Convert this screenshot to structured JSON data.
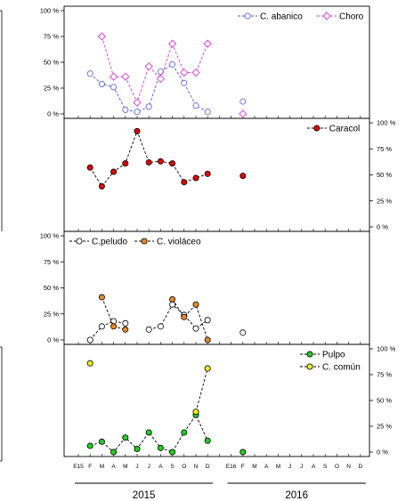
{
  "chart_data": {
    "type": "line",
    "x_categories": [
      "E15",
      "F",
      "M",
      "A",
      "M",
      "J",
      "J",
      "A",
      "S",
      "O",
      "N",
      "D",
      "",
      "E16",
      "F",
      "M",
      "A",
      "M",
      "J",
      "J",
      "A",
      "S",
      "O",
      "N",
      "D"
    ],
    "year_labels": [
      "2015",
      "2016"
    ],
    "grid": false,
    "panels": [
      {
        "ylim": [
          0,
          100
        ],
        "yticks": [
          "0 %",
          "25 %",
          "50 %",
          "75 %",
          "100 %"
        ],
        "axis_side": "left",
        "legend_position": "top-right",
        "series": [
          {
            "name": "C. abanico",
            "color": "#4a5ad8",
            "fill": "#ffffff",
            "marker": "circle",
            "values": [
              null,
              39,
              29,
              26,
              4,
              2,
              7,
              41,
              48,
              30,
              8,
              2,
              null,
              null,
              12,
              null,
              null,
              null,
              null,
              null,
              null,
              null,
              null,
              null,
              null
            ]
          },
          {
            "name": "Choro",
            "color": "#d63ad6",
            "fill": "#ffffff",
            "marker": "diamond",
            "values": [
              null,
              null,
              75,
              36,
              36,
              11,
              46,
              34,
              68,
              40,
              40,
              68,
              null,
              null,
              0,
              null,
              null,
              null,
              null,
              null,
              null,
              null,
              null,
              null,
              null
            ]
          }
        ]
      },
      {
        "ylim": [
          0,
          100
        ],
        "yticks": [
          "0 %",
          "25 %",
          "50 %",
          "75 %",
          "100 %"
        ],
        "axis_side": "right",
        "legend_position": "top-right",
        "series": [
          {
            "name": "Caracol",
            "color": "#000000",
            "fill": "#e00000",
            "marker": "circle",
            "values": [
              null,
              57,
              39,
              53,
              61,
              92,
              62,
              63,
              61,
              43,
              47,
              51,
              null,
              null,
              49,
              null,
              null,
              null,
              null,
              null,
              null,
              null,
              null,
              null,
              null
            ]
          }
        ]
      },
      {
        "ylim": [
          0,
          100
        ],
        "yticks": [
          "0 %",
          "25 %",
          "50 %",
          "75 %",
          "100 %"
        ],
        "axis_side": "left",
        "legend_position": "top-left",
        "series": [
          {
            "name": "C.peludo",
            "color": "#000000",
            "fill": "#ffffff",
            "marker": "circle",
            "values": [
              null,
              0,
              13,
              18,
              16,
              null,
              10,
              13,
              34,
              24,
              11,
              19,
              null,
              null,
              7,
              null,
              null,
              null,
              null,
              null,
              null,
              null,
              null,
              null,
              null
            ]
          },
          {
            "name": "C. violáceo",
            "color": "#000000",
            "fill": "#e88a2a",
            "marker": "circle",
            "values": [
              null,
              null,
              41,
              13,
              10,
              null,
              null,
              null,
              39,
              22,
              34,
              0,
              null,
              null,
              null,
              null,
              null,
              null,
              null,
              null,
              null,
              null,
              null,
              null,
              null
            ]
          }
        ]
      },
      {
        "ylim": [
          0,
          100
        ],
        "yticks": [
          "0 %",
          "25 %",
          "50 %",
          "75 %",
          "100 %"
        ],
        "axis_side": "right",
        "legend_position": "top-right",
        "series": [
          {
            "name": "Pulpo",
            "color": "#000000",
            "fill": "#22d022",
            "marker": "circle",
            "values": [
              null,
              6,
              10,
              0,
              14,
              3,
              19,
              4,
              0,
              19,
              36,
              11,
              null,
              null,
              0,
              null,
              null,
              null,
              null,
              null,
              null,
              null,
              null,
              null,
              null
            ]
          },
          {
            "name": "C. común",
            "color": "#000000",
            "fill": "#eeee22",
            "marker": "circle",
            "values": [
              null,
              86,
              null,
              null,
              null,
              null,
              null,
              null,
              null,
              null,
              39,
              81,
              null,
              null,
              null,
              null,
              null,
              null,
              null,
              null,
              null,
              null,
              null,
              null,
              null
            ]
          }
        ]
      }
    ]
  }
}
